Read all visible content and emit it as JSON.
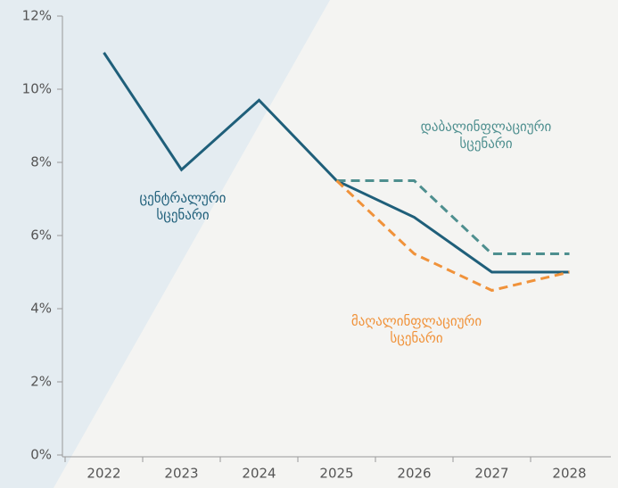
{
  "chart_data": {
    "type": "line",
    "categories": [
      "2022",
      "2023",
      "2024",
      "2025",
      "2026",
      "2027",
      "2028"
    ],
    "series": [
      {
        "name": "ცენტრალური სცენარი",
        "color": "#1f5f7a",
        "dashed": false,
        "values": [
          11,
          7.8,
          9.7,
          7.5,
          6.5,
          5,
          5
        ]
      },
      {
        "name": "დაბალინფლაციური სცენარი",
        "color": "#4e8f8f",
        "dashed": true,
        "values": [
          null,
          null,
          null,
          7.5,
          7.5,
          5.5,
          5.5
        ]
      },
      {
        "name": "მაღალინფლაციური სცენარი",
        "color": "#f0923a",
        "dashed": true,
        "values": [
          null,
          null,
          null,
          7.5,
          5.5,
          4.5,
          5
        ]
      }
    ],
    "ylim": [
      0,
      12
    ],
    "yticks": [
      {
        "value": 0,
        "label": "0%"
      },
      {
        "value": 2,
        "label": "2%"
      },
      {
        "value": 4,
        "label": "4%"
      },
      {
        "value": 6,
        "label": "6%"
      },
      {
        "value": 8,
        "label": "8%"
      },
      {
        "value": 10,
        "label": "10%"
      },
      {
        "value": 12,
        "label": "12%"
      }
    ],
    "grid": false
  }
}
